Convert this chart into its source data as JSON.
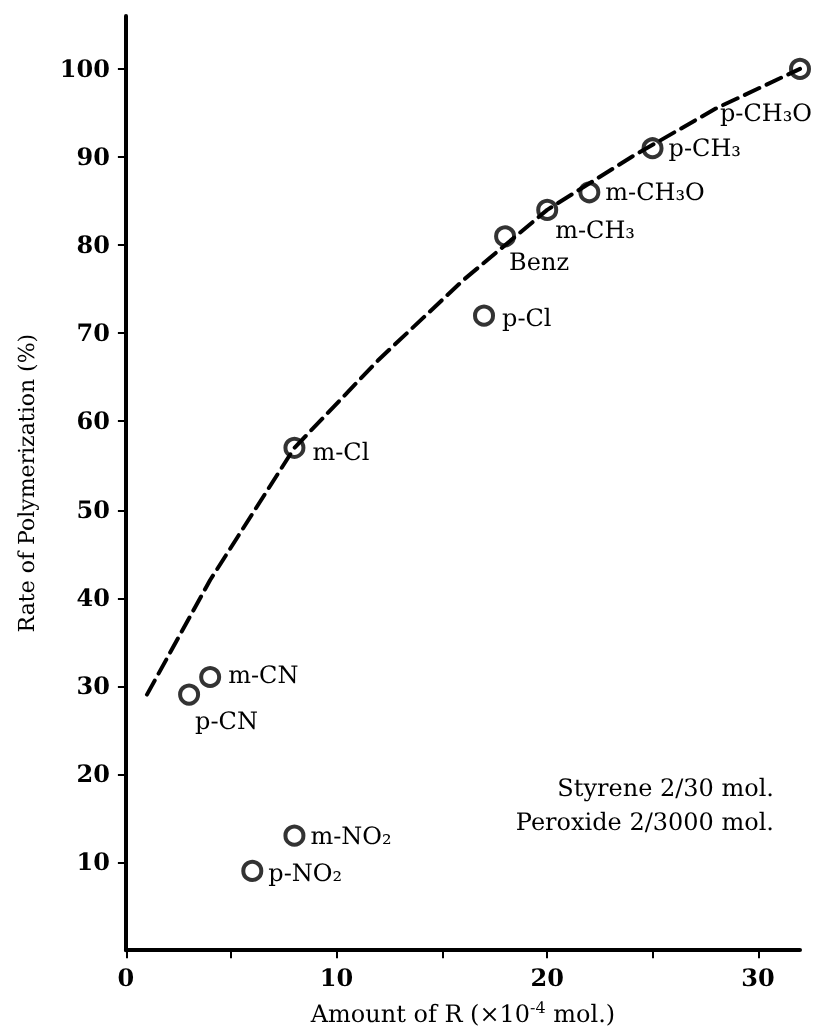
{
  "chart_data": {
    "type": "scatter",
    "xlabel": "Amount of R (×10$^{-4}$ mol.)",
    "ylabel": "Rate of Polymerization (%)",
    "xlim": [
      0,
      32
    ],
    "xticks": [
      0,
      {
        "value": 5,
        "label": null
      },
      10,
      {
        "value": 15,
        "label": null
      },
      20,
      {
        "value": 25,
        "label": null
      },
      30
    ],
    "ylim": [
      0,
      106
    ],
    "yticks": [
      10,
      20,
      30,
      40,
      50,
      60,
      70,
      80,
      90,
      100
    ],
    "series": [
      {
        "color": "#000000",
        "marker": "circle",
        "x": [
          32,
          25,
          22,
          20,
          18,
          17,
          8,
          4,
          3,
          8,
          6
        ],
        "values": [
          100,
          91,
          86,
          84,
          81,
          72,
          57,
          31,
          29,
          13,
          9
        ]
      },
      {
        "type": "line",
        "color": "#000000",
        "marker": "none",
        "line_style": "dashed",
        "x": [
          1,
          4,
          8,
          12,
          16,
          20,
          24,
          28,
          32
        ],
        "values": [
          29,
          42,
          57,
          67,
          76,
          84,
          90,
          95.5,
          100
        ]
      }
    ],
    "annotations": [
      {
        "text": "p-CH₃O",
        "x": 32,
        "y": 100
      },
      {
        "text": "p-CH₃",
        "x": 25,
        "y": 91
      },
      {
        "text": "m-CH₃O",
        "x": 22,
        "y": 86
      },
      {
        "text": "m-CH₃",
        "x": 20,
        "y": 84
      },
      {
        "text": "Benz",
        "x": 18,
        "y": 81
      },
      {
        "text": "p-Cl",
        "x": 17,
        "y": 72
      },
      {
        "text": "m-Cl",
        "x": 8,
        "y": 57
      },
      {
        "text": "m-CN",
        "x": 4,
        "y": 31
      },
      {
        "text": "p-CN",
        "x": 3,
        "y": 29
      },
      {
        "text": "m-NO₂",
        "x": 8,
        "y": 13
      },
      {
        "text": "p-NO₂",
        "x": 6,
        "y": 9
      },
      "Styrene 2/30 mol.",
      "Peroxide 2/3000 mol."
    ]
  }
}
